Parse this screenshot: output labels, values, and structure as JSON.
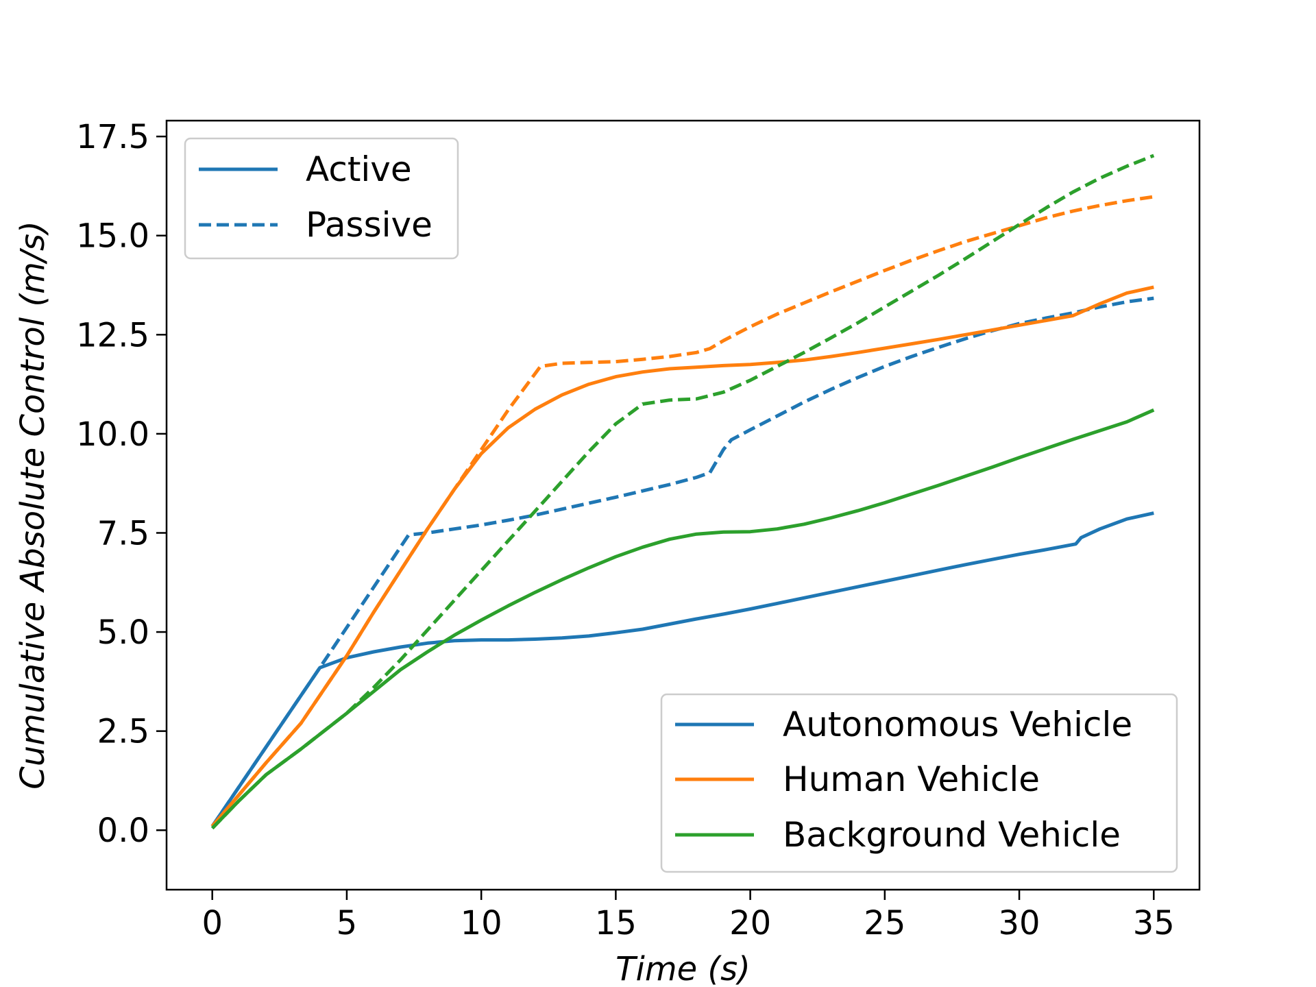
{
  "chart_data": {
    "type": "line",
    "xlabel": "Time   (s)",
    "ylabel": "Cumulative   Absolute   Control   (m/s)",
    "xlim": [
      -1.7,
      36.7
    ],
    "ylim": [
      -1.5,
      17.9
    ],
    "xticks": [
      0,
      5,
      10,
      15,
      20,
      25,
      30,
      35
    ],
    "xtick_labels": [
      "0",
      "5",
      "10",
      "15",
      "20",
      "25",
      "30",
      "35"
    ],
    "yticks": [
      0.0,
      2.5,
      5.0,
      7.5,
      10.0,
      12.5,
      15.0,
      17.5
    ],
    "ytick_labels": [
      "0.0",
      "2.5",
      "5.0",
      "7.5",
      "10.0",
      "12.5",
      "15.0",
      "17.5"
    ],
    "grid": false,
    "colors": {
      "autonomous": "#1f77b4",
      "human": "#ff7f0e",
      "background": "#2ca02c"
    },
    "legend_style": {
      "placement": "top-left",
      "entries": [
        {
          "label": "Active",
          "dash": "solid",
          "color": "#1f77b4"
        },
        {
          "label": "Passive",
          "dash": "dashed",
          "color": "#1f77b4"
        }
      ]
    },
    "legend_vehicle": {
      "placement": "bottom-right",
      "entries": [
        {
          "label": "Autonomous Vehicle",
          "color": "#1f77b4"
        },
        {
          "label": "Human Vehicle",
          "color": "#ff7f0e"
        },
        {
          "label": "Background Vehicle",
          "color": "#2ca02c"
        }
      ]
    },
    "series": [
      {
        "vehicle": "Autonomous Vehicle",
        "mode": "Active",
        "dash": "solid",
        "color": "#1f77b4",
        "points": [
          [
            0,
            0.1
          ],
          [
            4,
            4.1
          ],
          [
            5,
            4.35
          ],
          [
            6,
            4.5
          ],
          [
            7,
            4.62
          ],
          [
            8,
            4.72
          ],
          [
            9,
            4.78
          ],
          [
            10,
            4.8
          ],
          [
            11,
            4.8
          ],
          [
            12,
            4.82
          ],
          [
            13,
            4.85
          ],
          [
            14,
            4.9
          ],
          [
            15,
            4.98
          ],
          [
            16,
            5.07
          ],
          [
            17,
            5.2
          ],
          [
            18,
            5.33
          ],
          [
            19,
            5.45
          ],
          [
            20,
            5.58
          ],
          [
            21,
            5.72
          ],
          [
            22,
            5.86
          ],
          [
            23,
            6.0
          ],
          [
            24,
            6.14
          ],
          [
            25,
            6.28
          ],
          [
            26,
            6.42
          ],
          [
            27,
            6.56
          ],
          [
            28,
            6.7
          ],
          [
            29,
            6.83
          ],
          [
            30,
            6.96
          ],
          [
            31,
            7.08
          ],
          [
            32.1,
            7.22
          ],
          [
            32.3,
            7.38
          ],
          [
            33,
            7.6
          ],
          [
            34,
            7.85
          ],
          [
            35,
            8.0
          ]
        ]
      },
      {
        "vehicle": "Autonomous Vehicle",
        "mode": "Passive",
        "dash": "dashed",
        "color": "#1f77b4",
        "points": [
          [
            0,
            0.1
          ],
          [
            4,
            4.1
          ],
          [
            7.3,
            7.45
          ],
          [
            8,
            7.5
          ],
          [
            9,
            7.6
          ],
          [
            10,
            7.7
          ],
          [
            11,
            7.82
          ],
          [
            12,
            7.95
          ],
          [
            13,
            8.1
          ],
          [
            14,
            8.25
          ],
          [
            15,
            8.4
          ],
          [
            16,
            8.56
          ],
          [
            17,
            8.72
          ],
          [
            18,
            8.9
          ],
          [
            18.5,
            9.02
          ],
          [
            19,
            9.6
          ],
          [
            19.3,
            9.85
          ],
          [
            20,
            10.1
          ],
          [
            21,
            10.45
          ],
          [
            22,
            10.8
          ],
          [
            23,
            11.12
          ],
          [
            24,
            11.42
          ],
          [
            25,
            11.7
          ],
          [
            26,
            11.95
          ],
          [
            27,
            12.18
          ],
          [
            28,
            12.4
          ],
          [
            29,
            12.6
          ],
          [
            30,
            12.78
          ],
          [
            31,
            12.92
          ],
          [
            32,
            13.05
          ],
          [
            33,
            13.2
          ],
          [
            34,
            13.33
          ],
          [
            35,
            13.42
          ]
        ]
      },
      {
        "vehicle": "Human Vehicle",
        "mode": "Active",
        "dash": "solid",
        "color": "#ff7f0e",
        "points": [
          [
            0,
            0.1
          ],
          [
            1,
            0.9
          ],
          [
            2,
            1.7
          ],
          [
            3.3,
            2.7
          ],
          [
            5,
            4.4
          ],
          [
            6,
            5.5
          ],
          [
            7,
            6.55
          ],
          [
            8,
            7.6
          ],
          [
            9,
            8.6
          ],
          [
            10,
            9.5
          ],
          [
            11,
            10.15
          ],
          [
            12,
            10.62
          ],
          [
            13,
            10.98
          ],
          [
            14,
            11.25
          ],
          [
            15,
            11.44
          ],
          [
            16,
            11.56
          ],
          [
            17,
            11.64
          ],
          [
            18,
            11.68
          ],
          [
            19,
            11.72
          ],
          [
            20,
            11.75
          ],
          [
            21,
            11.8
          ],
          [
            22,
            11.86
          ],
          [
            23,
            11.95
          ],
          [
            24,
            12.05
          ],
          [
            25,
            12.16
          ],
          [
            26,
            12.27
          ],
          [
            27,
            12.38
          ],
          [
            28,
            12.5
          ],
          [
            29,
            12.62
          ],
          [
            30,
            12.74
          ],
          [
            31,
            12.86
          ],
          [
            32,
            12.98
          ],
          [
            33,
            13.28
          ],
          [
            34,
            13.55
          ],
          [
            35,
            13.7
          ]
        ]
      },
      {
        "vehicle": "Human Vehicle",
        "mode": "Passive",
        "dash": "dashed",
        "color": "#ff7f0e",
        "points": [
          [
            0,
            0.1
          ],
          [
            1,
            0.9
          ],
          [
            2,
            1.7
          ],
          [
            3.3,
            2.7
          ],
          [
            5,
            4.4
          ],
          [
            6,
            5.5
          ],
          [
            7,
            6.55
          ],
          [
            8,
            7.6
          ],
          [
            9,
            8.6
          ],
          [
            10,
            9.6
          ],
          [
            11,
            10.6
          ],
          [
            12.2,
            11.7
          ],
          [
            13,
            11.78
          ],
          [
            14,
            11.8
          ],
          [
            15,
            11.82
          ],
          [
            16,
            11.88
          ],
          [
            17,
            11.95
          ],
          [
            18,
            12.05
          ],
          [
            18.5,
            12.15
          ],
          [
            19,
            12.35
          ],
          [
            20,
            12.7
          ],
          [
            21,
            13.02
          ],
          [
            22,
            13.3
          ],
          [
            23,
            13.58
          ],
          [
            24,
            13.85
          ],
          [
            25,
            14.12
          ],
          [
            26,
            14.38
          ],
          [
            27,
            14.62
          ],
          [
            28,
            14.85
          ],
          [
            29,
            15.05
          ],
          [
            30,
            15.25
          ],
          [
            31,
            15.45
          ],
          [
            32,
            15.62
          ],
          [
            33,
            15.76
          ],
          [
            34,
            15.88
          ],
          [
            35,
            15.98
          ]
        ]
      },
      {
        "vehicle": "Background Vehicle",
        "mode": "Active",
        "dash": "solid",
        "color": "#2ca02c",
        "points": [
          [
            0,
            0.05
          ],
          [
            1,
            0.75
          ],
          [
            2,
            1.4
          ],
          [
            3.3,
            2.05
          ],
          [
            5,
            2.95
          ],
          [
            6,
            3.5
          ],
          [
            7,
            4.05
          ],
          [
            8,
            4.5
          ],
          [
            9,
            4.92
          ],
          [
            10,
            5.3
          ],
          [
            11,
            5.66
          ],
          [
            12,
            6.0
          ],
          [
            13,
            6.32
          ],
          [
            14,
            6.62
          ],
          [
            15,
            6.9
          ],
          [
            16,
            7.14
          ],
          [
            17,
            7.34
          ],
          [
            18,
            7.47
          ],
          [
            19,
            7.52
          ],
          [
            20,
            7.53
          ],
          [
            21,
            7.6
          ],
          [
            22,
            7.72
          ],
          [
            23,
            7.88
          ],
          [
            24,
            8.06
          ],
          [
            25,
            8.26
          ],
          [
            26,
            8.48
          ],
          [
            27,
            8.7
          ],
          [
            28,
            8.93
          ],
          [
            29,
            9.16
          ],
          [
            30,
            9.4
          ],
          [
            31,
            9.63
          ],
          [
            32,
            9.86
          ],
          [
            33,
            10.08
          ],
          [
            34,
            10.3
          ],
          [
            35,
            10.6
          ]
        ]
      },
      {
        "vehicle": "Background Vehicle",
        "mode": "Passive",
        "dash": "dashed",
        "color": "#2ca02c",
        "points": [
          [
            0,
            0.05
          ],
          [
            1,
            0.75
          ],
          [
            2,
            1.4
          ],
          [
            3.3,
            2.05
          ],
          [
            5,
            2.95
          ],
          [
            6,
            3.6
          ],
          [
            7,
            4.3
          ],
          [
            8,
            5.05
          ],
          [
            9,
            5.8
          ],
          [
            10,
            6.55
          ],
          [
            11,
            7.3
          ],
          [
            12,
            8.05
          ],
          [
            13,
            8.8
          ],
          [
            14,
            9.55
          ],
          [
            15,
            10.25
          ],
          [
            16,
            10.75
          ],
          [
            17,
            10.85
          ],
          [
            18,
            10.88
          ],
          [
            19,
            11.05
          ],
          [
            20,
            11.35
          ],
          [
            21,
            11.7
          ],
          [
            22,
            12.05
          ],
          [
            23,
            12.42
          ],
          [
            24,
            12.8
          ],
          [
            25,
            13.2
          ],
          [
            26,
            13.6
          ],
          [
            27,
            14.0
          ],
          [
            28,
            14.42
          ],
          [
            29,
            14.85
          ],
          [
            30,
            15.28
          ],
          [
            31,
            15.7
          ],
          [
            32,
            16.1
          ],
          [
            33,
            16.45
          ],
          [
            34,
            16.75
          ],
          [
            35,
            17.02
          ]
        ]
      }
    ]
  }
}
